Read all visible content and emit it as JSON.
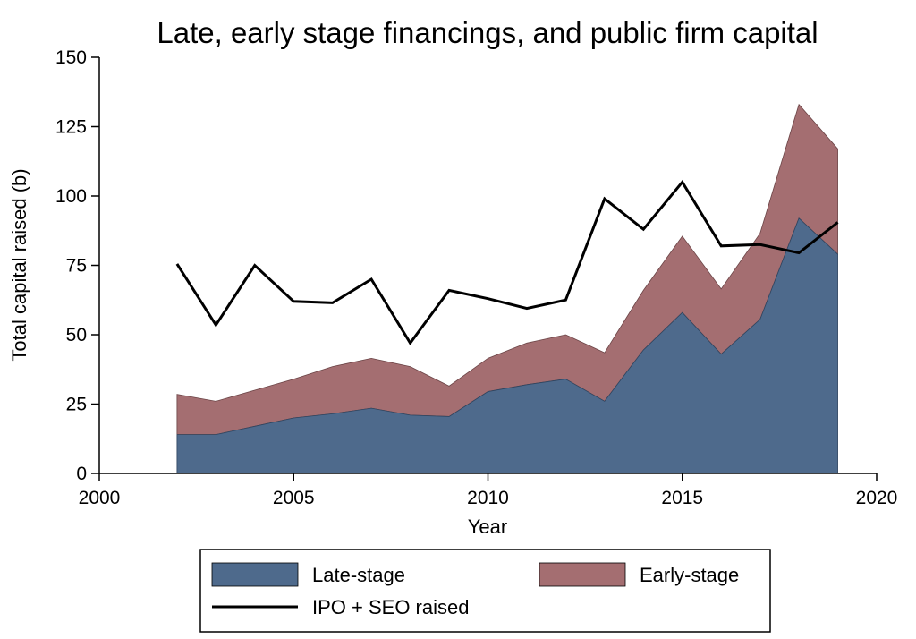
{
  "chart_data": {
    "type": "area",
    "title": "Late, early stage financings, and public firm capital",
    "xlabel": "Year",
    "ylabel": "Total capital raised (b)",
    "xlim": [
      2000,
      2020
    ],
    "ylim": [
      0,
      150
    ],
    "x_ticks": [
      2000,
      2005,
      2010,
      2015,
      2020
    ],
    "y_ticks": [
      0,
      25,
      50,
      75,
      100,
      125,
      150
    ],
    "grid": false,
    "legend_position": "bottom",
    "x": [
      2002,
      2003,
      2004,
      2005,
      2006,
      2007,
      2008,
      2009,
      2010,
      2011,
      2012,
      2013,
      2014,
      2015,
      2016,
      2017,
      2018,
      2019
    ],
    "series": [
      {
        "name": "Late-stage",
        "kind": "area",
        "color": "#4e6a8c",
        "values": [
          14,
          14,
          17,
          20,
          21.5,
          23.5,
          21,
          20.5,
          29.5,
          32,
          34,
          26,
          44.5,
          58,
          43,
          55.5,
          92,
          79
        ]
      },
      {
        "name": "Early-stage",
        "kind": "stacked-area",
        "color": "#a46e71",
        "values": [
          14.5,
          12,
          13,
          14,
          17,
          18,
          17.5,
          11,
          12,
          15,
          16,
          17.5,
          21.5,
          27.5,
          23.5,
          31,
          41,
          38
        ]
      },
      {
        "name": "IPO + SEO raised",
        "kind": "line",
        "color": "#000000",
        "values": [
          75.5,
          53.5,
          75,
          62,
          61.5,
          70,
          47,
          66,
          63,
          59.5,
          62.5,
          99,
          88,
          105,
          82,
          82.5,
          79.5,
          90.5
        ]
      }
    ]
  }
}
